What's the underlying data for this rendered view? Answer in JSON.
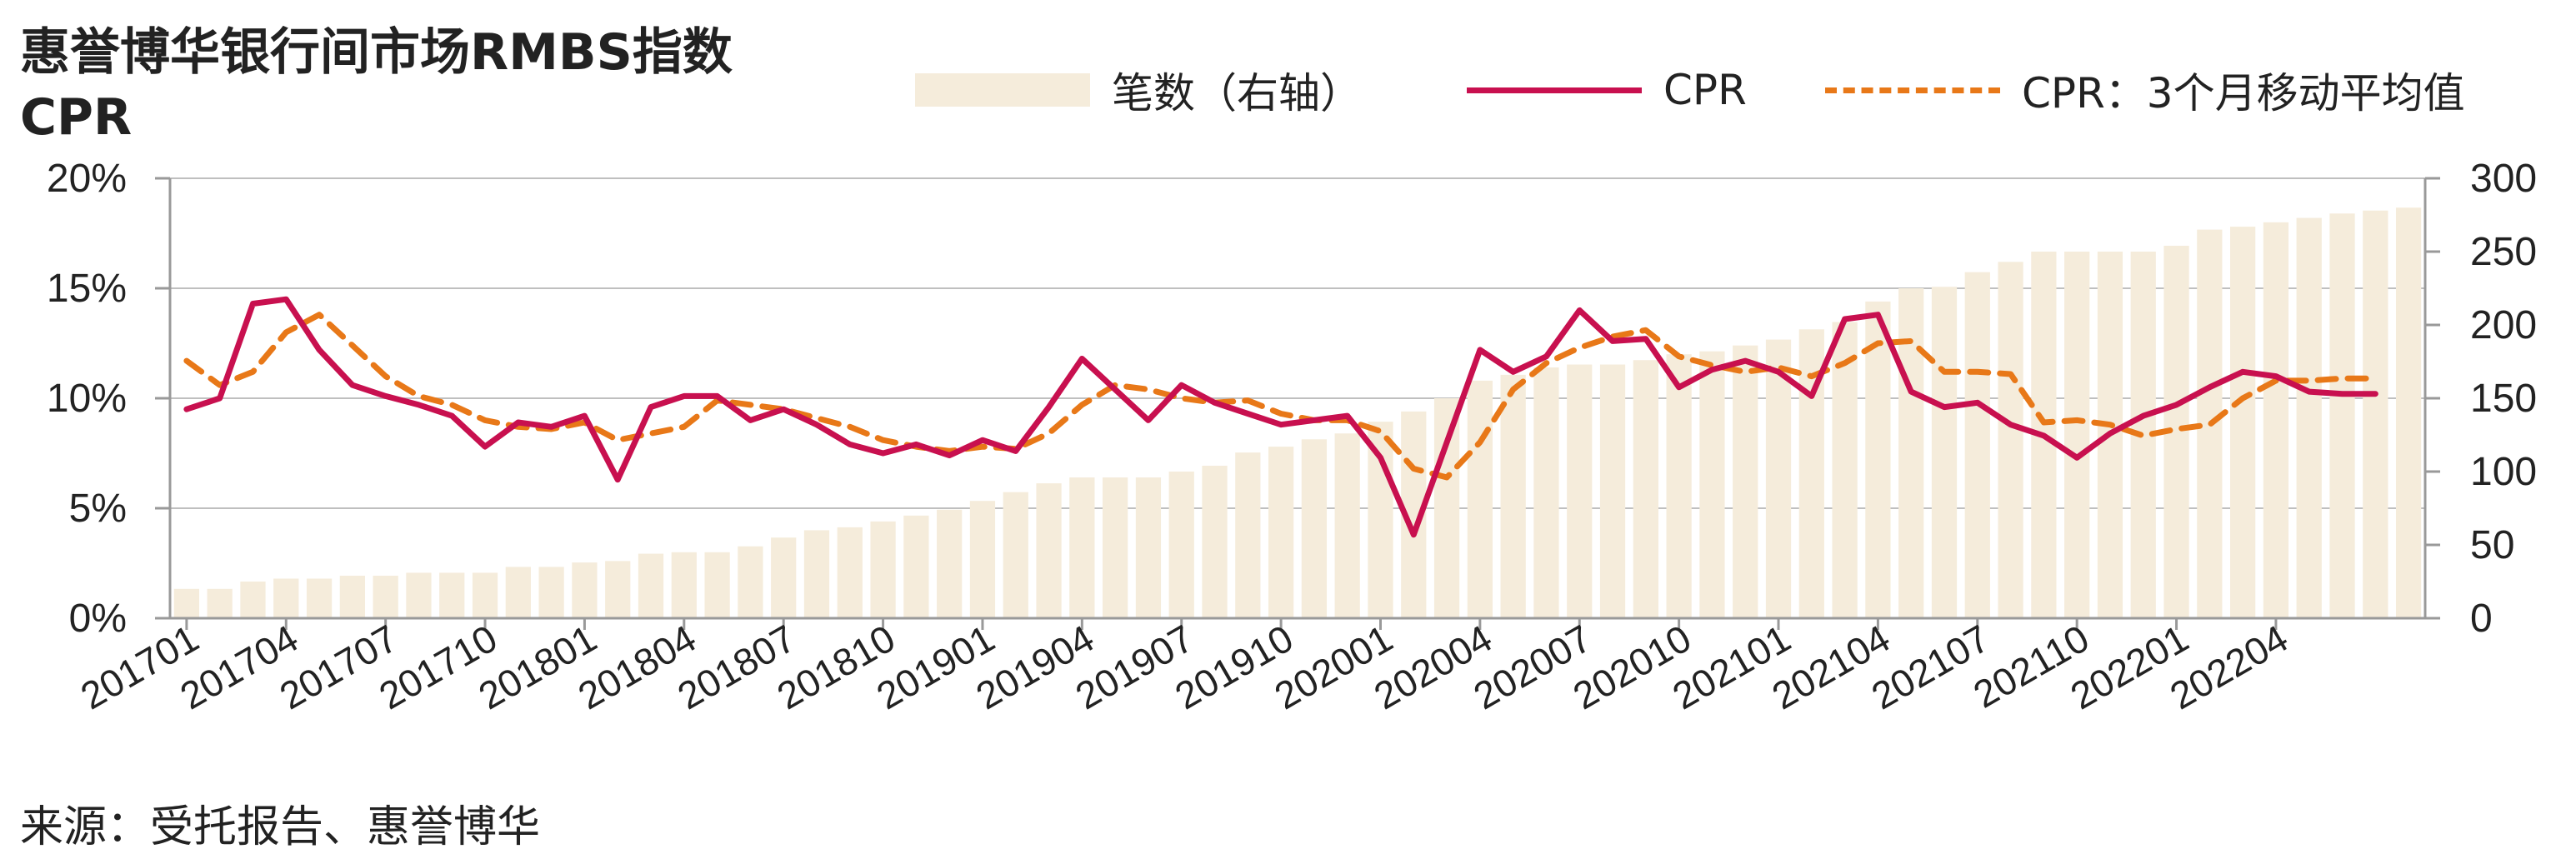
{
  "title": "惠誉博华银行间市场RMBS指数",
  "subtitle": "CPR",
  "source": "来源：受托报告、惠誉博华",
  "colors": {
    "bars": "#f5ecdb",
    "cpr": "#c8104f",
    "cpr_ma": "#e87818",
    "axis": "#999999",
    "grid": "#bfbfbf"
  },
  "legend": {
    "bars": "笔数（右轴）",
    "cpr": "CPR",
    "cpr_ma": "CPR：3个月移动平均值"
  },
  "chart_data": {
    "type": "bar+line",
    "categories": [
      "201701",
      "201702",
      "201703",
      "201704",
      "201705",
      "201706",
      "201707",
      "201708",
      "201709",
      "201710",
      "201711",
      "201712",
      "201801",
      "201802",
      "201803",
      "201804",
      "201805",
      "201806",
      "201807",
      "201808",
      "201809",
      "201810",
      "201811",
      "201812",
      "201901",
      "201902",
      "201903",
      "201904",
      "201905",
      "201906",
      "201907",
      "201908",
      "201909",
      "201910",
      "201911",
      "201912",
      "202001",
      "202002",
      "202003",
      "202004",
      "202005",
      "202006",
      "202007",
      "202008",
      "202009",
      "202010",
      "202011",
      "202012",
      "202101",
      "202102",
      "202103",
      "202104",
      "202105",
      "202106",
      "202107",
      "202108",
      "202109",
      "202110",
      "202111",
      "202112",
      "202201",
      "202202",
      "202203",
      "202204",
      "202205",
      "202206"
    ],
    "x_tick_labels": [
      "201701",
      "201704",
      "201707",
      "201710",
      "201801",
      "201804",
      "201807",
      "201810",
      "201901",
      "201904",
      "201907",
      "201910",
      "202001",
      "202004",
      "202007",
      "202010",
      "202101",
      "202104",
      "202107",
      "202110",
      "202201",
      "202204"
    ],
    "y_left": {
      "ticks": [
        "0%",
        "5%",
        "10%",
        "15%",
        "20%"
      ],
      "range": [
        0,
        20
      ]
    },
    "y_right": {
      "ticks": [
        "0",
        "50",
        "100",
        "150",
        "200",
        "250",
        "300"
      ],
      "range": [
        0,
        300
      ]
    },
    "series": [
      {
        "name": "笔数（右轴）",
        "type": "bar",
        "axis": "right",
        "values": [
          20,
          20,
          25,
          27,
          27,
          29,
          29,
          31,
          31,
          31,
          35,
          35,
          38,
          39,
          44,
          45,
          45,
          49,
          55,
          60,
          62,
          66,
          70,
          74,
          80,
          86,
          92,
          96,
          96,
          96,
          100,
          104,
          113,
          117,
          122,
          126,
          134,
          141,
          150,
          162,
          166,
          171,
          173,
          173,
          176,
          180,
          182,
          186,
          190,
          197,
          202,
          216,
          225,
          226,
          236,
          243,
          250,
          250,
          250,
          250,
          254,
          265,
          267,
          270,
          273,
          276
        ],
        "note_tail": [
          278,
          280
        ]
      },
      {
        "name": "CPR",
        "type": "line",
        "axis": "left",
        "values": [
          9.5,
          10.0,
          14.3,
          14.5,
          12.2,
          10.6,
          10.1,
          9.7,
          9.2,
          7.8,
          8.9,
          8.7,
          9.2,
          6.3,
          9.6,
          10.1,
          10.1,
          9.0,
          9.5,
          8.8,
          7.9,
          7.5,
          7.9,
          7.4,
          8.1,
          7.6,
          9.6,
          11.8,
          10.4,
          9.0,
          10.6,
          9.8,
          9.3,
          8.8,
          9.0,
          9.2,
          7.3,
          3.8,
          8.0,
          12.2,
          11.2,
          11.9,
          14.0,
          12.6,
          12.7,
          10.5,
          11.3,
          11.7,
          11.2,
          10.1,
          13.6,
          13.8,
          10.3,
          9.6,
          9.8,
          8.8,
          8.3,
          7.3,
          8.4,
          9.2,
          9.7,
          10.5,
          11.2,
          11.0,
          10.3,
          10.2
        ],
        "tail": [
          10.2
        ]
      },
      {
        "name": "CPR：3个月移动平均值",
        "type": "line",
        "axis": "left",
        "values": [
          11.7,
          10.6,
          11.2,
          13.0,
          13.8,
          12.4,
          11.0,
          10.1,
          9.7,
          9.0,
          8.7,
          8.6,
          8.9,
          8.1,
          8.4,
          8.7,
          9.9,
          9.7,
          9.5,
          9.1,
          8.7,
          8.1,
          7.8,
          7.6,
          7.8,
          7.7,
          8.4,
          9.7,
          10.6,
          10.4,
          10.0,
          9.8,
          9.9,
          9.3,
          9.0,
          9.0,
          8.5,
          6.8,
          6.4,
          8.0,
          10.4,
          11.6,
          12.3,
          12.8,
          13.1,
          11.9,
          11.5,
          11.2,
          11.4,
          11.0,
          11.6,
          12.5,
          12.6,
          11.2,
          11.2,
          11.1,
          8.9,
          9.0,
          8.8,
          8.3,
          8.6,
          8.8,
          10.0,
          10.8,
          10.8,
          10.9
        ],
        "tail": [
          10.9
        ]
      }
    ]
  }
}
